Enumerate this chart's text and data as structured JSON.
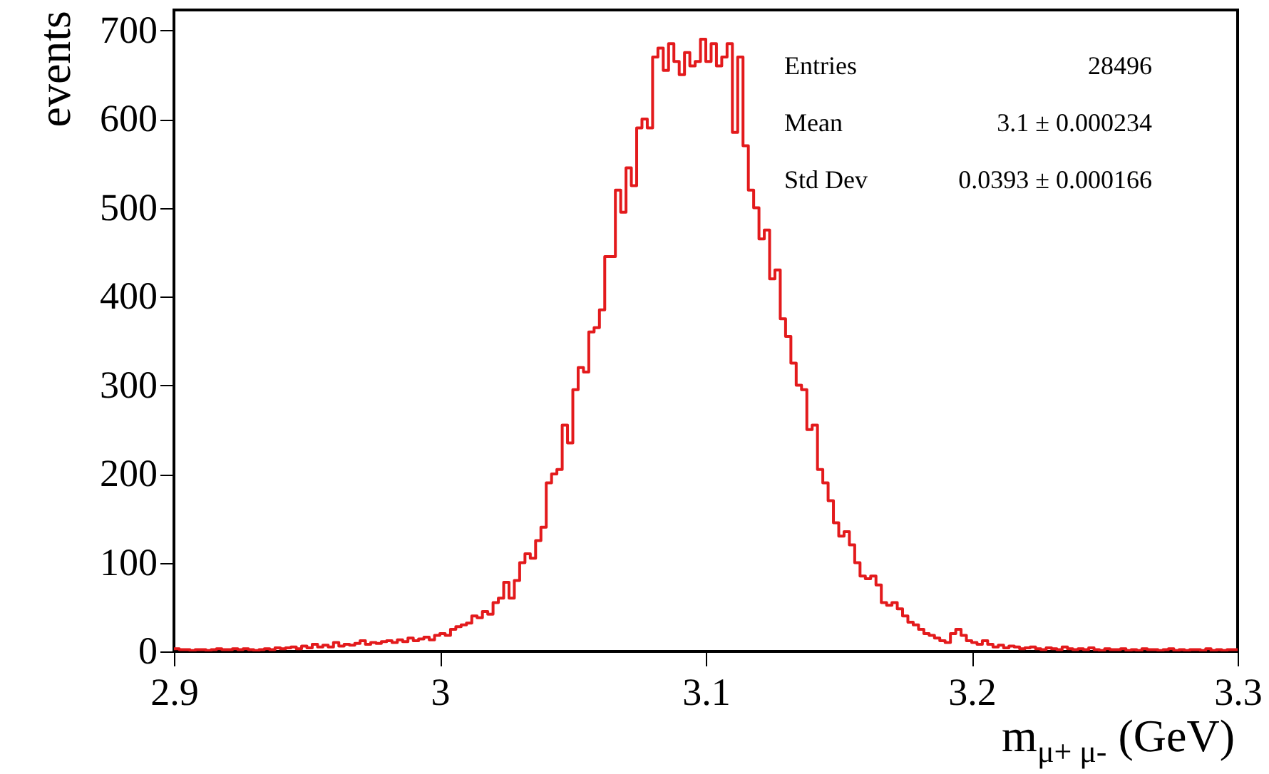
{
  "chart_data": {
    "type": "histogram",
    "xlabel": "m$_{μ+ μ-}$ (GeV)",
    "ylabel": "events",
    "color": "#e31a1c",
    "bins": [
      2.9,
      2.902,
      2.904,
      2.906,
      2.908,
      2.91,
      2.912,
      2.914,
      2.916,
      2.918,
      2.92,
      2.922,
      2.924,
      2.926,
      2.928,
      2.93,
      2.932,
      2.934,
      2.936,
      2.938,
      2.94,
      2.942,
      2.944,
      2.946,
      2.948,
      2.95,
      2.952,
      2.954,
      2.956,
      2.958,
      2.96,
      2.962,
      2.964,
      2.966,
      2.968,
      2.97,
      2.972,
      2.974,
      2.976,
      2.978,
      2.98,
      2.982,
      2.984,
      2.986,
      2.988,
      2.99,
      2.992,
      2.994,
      2.996,
      2.998,
      3,
      3.002,
      3.004,
      3.006,
      3.008,
      3.01,
      3.012,
      3.014,
      3.016,
      3.018,
      3.02,
      3.022,
      3.024,
      3.026,
      3.028,
      3.03,
      3.032,
      3.034,
      3.036,
      3.038,
      3.04,
      3.042,
      3.044,
      3.046,
      3.048,
      3.05,
      3.052,
      3.054,
      3.056,
      3.058,
      3.06,
      3.062,
      3.064,
      3.066,
      3.068,
      3.07,
      3.072,
      3.074,
      3.076,
      3.078,
      3.08,
      3.082,
      3.084,
      3.086,
      3.088,
      3.09,
      3.092,
      3.094,
      3.096,
      3.098,
      3.1,
      3.102,
      3.104,
      3.106,
      3.108,
      3.11,
      3.112,
      3.114,
      3.116,
      3.118,
      3.12,
      3.122,
      3.124,
      3.126,
      3.128,
      3.13,
      3.132,
      3.134,
      3.136,
      3.138,
      3.14,
      3.142,
      3.144,
      3.146,
      3.148,
      3.15,
      3.152,
      3.154,
      3.156,
      3.158,
      3.16,
      3.162,
      3.164,
      3.166,
      3.168,
      3.17,
      3.172,
      3.174,
      3.176,
      3.178,
      3.18,
      3.182,
      3.184,
      3.186,
      3.188,
      3.19,
      3.192,
      3.194,
      3.196,
      3.198,
      3.2,
      3.202,
      3.204,
      3.206,
      3.208,
      3.21,
      3.212,
      3.214,
      3.216,
      3.218,
      3.22,
      3.222,
      3.224,
      3.226,
      3.228,
      3.23,
      3.232,
      3.234,
      3.236,
      3.238,
      3.24,
      3.242,
      3.244,
      3.246,
      3.248,
      3.25,
      3.252,
      3.254,
      3.256,
      3.258,
      3.26,
      3.262,
      3.264,
      3.266,
      3.268,
      3.27,
      3.272,
      3.274,
      3.276,
      3.278,
      3.28,
      3.282,
      3.284,
      3.286,
      3.288,
      3.29,
      3.292,
      3.294,
      3.296,
      3.298,
      3.3
    ],
    "values": [
      3,
      2,
      2,
      1,
      2,
      2,
      1,
      2,
      3,
      2,
      2,
      3,
      2,
      3,
      2,
      1,
      2,
      3,
      2,
      4,
      3,
      4,
      5,
      3,
      6,
      4,
      8,
      5,
      7,
      5,
      10,
      6,
      8,
      7,
      9,
      12,
      8,
      10,
      9,
      11,
      12,
      10,
      13,
      11,
      15,
      12,
      14,
      16,
      13,
      18,
      20,
      18,
      25,
      28,
      30,
      32,
      40,
      38,
      45,
      42,
      55,
      60,
      78,
      60,
      80,
      100,
      110,
      105,
      125,
      140,
      190,
      200,
      205,
      255,
      235,
      295,
      320,
      315,
      360,
      365,
      385,
      445,
      445,
      520,
      495,
      545,
      525,
      590,
      600,
      590,
      670,
      680,
      655,
      685,
      665,
      650,
      675,
      660,
      665,
      690,
      665,
      685,
      660,
      670,
      685,
      585,
      670,
      570,
      520,
      500,
      465,
      475,
      420,
      430,
      375,
      355,
      325,
      300,
      295,
      250,
      255,
      205,
      190,
      170,
      145,
      130,
      135,
      120,
      100,
      85,
      82,
      85,
      75,
      55,
      52,
      55,
      48,
      40,
      33,
      30,
      25,
      20,
      18,
      15,
      12,
      10,
      20,
      25,
      18,
      12,
      10,
      8,
      12,
      8,
      5,
      7,
      4,
      6,
      5,
      3,
      4,
      5,
      3,
      2,
      4,
      3,
      2,
      5,
      3,
      2,
      3,
      2,
      4,
      2,
      1,
      3,
      2,
      2,
      3,
      1,
      2,
      1,
      3,
      2,
      2,
      1,
      2,
      3,
      1,
      2,
      1,
      2,
      2,
      1,
      3,
      1,
      2,
      1,
      2,
      2
    ],
    "xlim": [
      2.9,
      3.3
    ],
    "xticks": [
      2.9,
      3,
      3.1,
      3.2,
      3.3
    ],
    "ylim": [
      0,
      723
    ],
    "yticks": [
      0,
      100,
      200,
      300,
      400,
      500,
      600,
      700
    ],
    "annotations": [
      "Entries",
      "28496",
      "Mean",
      "3.1 ± 0.000234",
      "Std Dev",
      "0.0393 ± 0.000166"
    ]
  }
}
